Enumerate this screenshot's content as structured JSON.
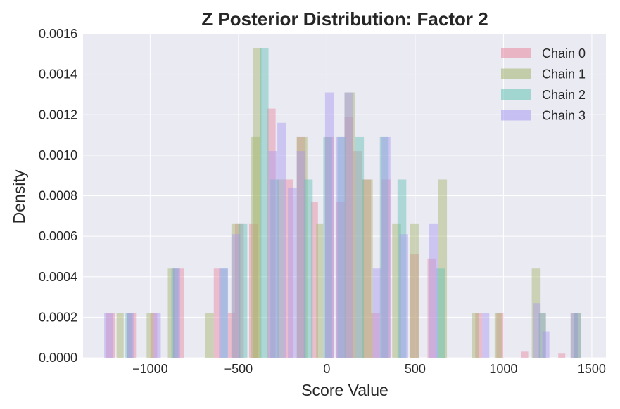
{
  "chart_data": {
    "type": "bar",
    "title": "Z Posterior Distribution: Factor 2",
    "xlabel": "Score Value",
    "ylabel": "Density",
    "xlim": [
      -1380,
      1580
    ],
    "ylim": [
      0,
      0.0016
    ],
    "xticks": [
      -1000,
      -500,
      0,
      500,
      1000,
      1500
    ],
    "xtick_labels": [
      "−1000",
      "−500",
      "0",
      "500",
      "1000",
      "1500"
    ],
    "yticks": [
      0,
      0.0002,
      0.0004,
      0.0006,
      0.0008,
      0.001,
      0.0012,
      0.0014,
      0.0016
    ],
    "ytick_labels": [
      "0.0000",
      "0.0002",
      "0.0004",
      "0.0006",
      "0.0008",
      "0.0010",
      "0.0012",
      "0.0014",
      "0.0016"
    ],
    "grid": true,
    "legend_position": "top-right",
    "opacity": 0.45,
    "series": [
      {
        "name": "Chain 0",
        "color": "#e8879d",
        "bars": [
          {
            "x0": -1250,
            "x1": -1200,
            "y": 0.00022
          },
          {
            "x0": -1130,
            "x1": -1080,
            "y": 0.00022
          },
          {
            "x0": -1000,
            "x1": -960,
            "y": 0.00022
          },
          {
            "x0": -870,
            "x1": -810,
            "y": 0.00044
          },
          {
            "x0": -640,
            "x1": -600,
            "y": 0.00044
          },
          {
            "x0": -560,
            "x1": -520,
            "y": 0.00022
          },
          {
            "x0": -520,
            "x1": -470,
            "y": 0.00066
          },
          {
            "x0": -440,
            "x1": -390,
            "y": 0.00066
          },
          {
            "x0": -340,
            "x1": -290,
            "y": 0.00123
          },
          {
            "x0": -240,
            "x1": -190,
            "y": 0.00088
          },
          {
            "x0": -170,
            "x1": -120,
            "y": 0.00109
          },
          {
            "x0": -90,
            "x1": -50,
            "y": 0.00077
          },
          {
            "x0": -10,
            "x1": 40,
            "y": 0.00109
          },
          {
            "x0": 50,
            "x1": 100,
            "y": 0.00077
          },
          {
            "x0": 100,
            "x1": 150,
            "y": 0.00119
          },
          {
            "x0": 150,
            "x1": 200,
            "y": 0.00102
          },
          {
            "x0": 200,
            "x1": 250,
            "y": 0.00088
          },
          {
            "x0": 250,
            "x1": 300,
            "y": 0.00022
          },
          {
            "x0": 310,
            "x1": 360,
            "y": 0.00088
          },
          {
            "x0": 470,
            "x1": 520,
            "y": 0.00051
          },
          {
            "x0": 570,
            "x1": 620,
            "y": 0.00049
          },
          {
            "x0": 840,
            "x1": 880,
            "y": 0.00022
          },
          {
            "x0": 960,
            "x1": 1000,
            "y": 0.00022
          },
          {
            "x0": 1100,
            "x1": 1140,
            "y": 3e-05
          },
          {
            "x0": 1200,
            "x1": 1240,
            "y": 0.00022
          },
          {
            "x0": 1310,
            "x1": 1350,
            "y": 2e-05
          },
          {
            "x0": 1400,
            "x1": 1440,
            "y": 0.00022
          }
        ]
      },
      {
        "name": "Chain 1",
        "color": "#a3b36b",
        "bars": [
          {
            "x0": -1190,
            "x1": -1150,
            "y": 0.00022
          },
          {
            "x0": -1020,
            "x1": -980,
            "y": 0.00022
          },
          {
            "x0": -900,
            "x1": -860,
            "y": 0.00044
          },
          {
            "x0": -690,
            "x1": -640,
            "y": 0.00022
          },
          {
            "x0": -540,
            "x1": -490,
            "y": 0.00066
          },
          {
            "x0": -430,
            "x1": -380,
            "y": 0.00109
          },
          {
            "x0": -420,
            "x1": -370,
            "y": 0.00153
          },
          {
            "x0": -280,
            "x1": -240,
            "y": 0.00088
          },
          {
            "x0": -170,
            "x1": -110,
            "y": 0.00109
          },
          {
            "x0": -60,
            "x1": -20,
            "y": 0.00066
          },
          {
            "x0": 100,
            "x1": 160,
            "y": 0.00131
          },
          {
            "x0": 200,
            "x1": 260,
            "y": 0.00088
          },
          {
            "x0": 370,
            "x1": 420,
            "y": 0.00066
          },
          {
            "x0": 470,
            "x1": 520,
            "y": 0.00066
          },
          {
            "x0": 630,
            "x1": 680,
            "y": 0.00088
          },
          {
            "x0": 820,
            "x1": 860,
            "y": 0.00022
          },
          {
            "x0": 950,
            "x1": 990,
            "y": 0.00022
          },
          {
            "x0": 1160,
            "x1": 1210,
            "y": 0.00044
          },
          {
            "x0": 1380,
            "x1": 1420,
            "y": 0.00022
          }
        ]
      },
      {
        "name": "Chain 2",
        "color": "#62c2b4",
        "bars": [
          {
            "x0": -1140,
            "x1": -1100,
            "y": 0.00022
          },
          {
            "x0": -880,
            "x1": -840,
            "y": 0.00044
          },
          {
            "x0": -600,
            "x1": -560,
            "y": 0.00044
          },
          {
            "x0": -500,
            "x1": -450,
            "y": 0.00066
          },
          {
            "x0": -380,
            "x1": -330,
            "y": 0.00153
          },
          {
            "x0": -320,
            "x1": -270,
            "y": 0.00088
          },
          {
            "x0": -130,
            "x1": -80,
            "y": 0.00088
          },
          {
            "x0": -20,
            "x1": 30,
            "y": 0.00109
          },
          {
            "x0": 60,
            "x1": 110,
            "y": 0.00109
          },
          {
            "x0": 160,
            "x1": 210,
            "y": 0.00109
          },
          {
            "x0": 300,
            "x1": 350,
            "y": 0.00109
          },
          {
            "x0": 400,
            "x1": 450,
            "y": 0.00088
          },
          {
            "x0": 620,
            "x1": 670,
            "y": 0.00044
          },
          {
            "x0": 1200,
            "x1": 1240,
            "y": 0.00022
          },
          {
            "x0": 1400,
            "x1": 1440,
            "y": 0.00022
          }
        ]
      },
      {
        "name": "Chain 3",
        "color": "#a89af0",
        "bars": [
          {
            "x0": -1260,
            "x1": -1210,
            "y": 0.00022
          },
          {
            "x0": -1130,
            "x1": -1090,
            "y": 0.00022
          },
          {
            "x0": -980,
            "x1": -940,
            "y": 0.00022
          },
          {
            "x0": -870,
            "x1": -830,
            "y": 0.00044
          },
          {
            "x0": -610,
            "x1": -560,
            "y": 0.00044
          },
          {
            "x0": -540,
            "x1": -490,
            "y": 0.00061
          },
          {
            "x0": -330,
            "x1": -280,
            "y": 0.00102
          },
          {
            "x0": -280,
            "x1": -230,
            "y": 0.00116
          },
          {
            "x0": -220,
            "x1": -170,
            "y": 0.00084
          },
          {
            "x0": -170,
            "x1": -120,
            "y": 0.00102
          },
          {
            "x0": -10,
            "x1": 40,
            "y": 0.00131
          },
          {
            "x0": 50,
            "x1": 100,
            "y": 0.00109
          },
          {
            "x0": 100,
            "x1": 150,
            "y": 0.00131
          },
          {
            "x0": 260,
            "x1": 310,
            "y": 0.00044
          },
          {
            "x0": 310,
            "x1": 360,
            "y": 0.00109
          },
          {
            "x0": 410,
            "x1": 460,
            "y": 0.00061
          },
          {
            "x0": 580,
            "x1": 630,
            "y": 0.00066
          },
          {
            "x0": 880,
            "x1": 920,
            "y": 0.00022
          },
          {
            "x0": 1170,
            "x1": 1210,
            "y": 0.00027
          },
          {
            "x0": 1220,
            "x1": 1260,
            "y": 0.00013
          },
          {
            "x0": 1380,
            "x1": 1420,
            "y": 0.00022
          }
        ]
      }
    ]
  }
}
